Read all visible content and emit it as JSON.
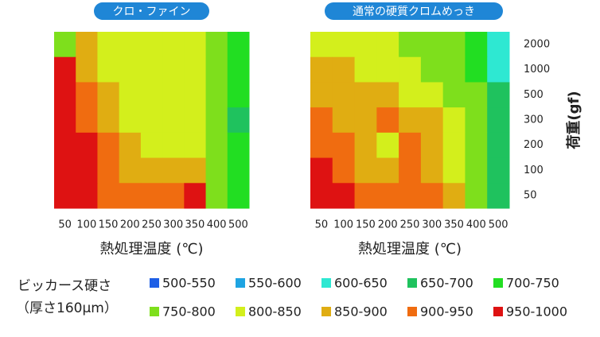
{
  "chart_data": [
    {
      "type": "heatmap",
      "title": "クロ・ファイン",
      "x_label": "熱処理温度 (℃)",
      "x": [
        "50",
        "100",
        "150",
        "200",
        "250",
        "300",
        "350",
        "400",
        "500"
      ],
      "z": [
        [
          760,
          870,
          830,
          830,
          830,
          830,
          820,
          760,
          720
        ],
        [
          970,
          880,
          830,
          830,
          830,
          830,
          820,
          760,
          700
        ],
        [
          970,
          920,
          870,
          830,
          810,
          830,
          820,
          760,
          700
        ],
        [
          970,
          930,
          880,
          830,
          830,
          830,
          810,
          760,
          680
        ],
        [
          970,
          960,
          900,
          860,
          830,
          830,
          840,
          770,
          710
        ],
        [
          980,
          960,
          920,
          880,
          880,
          870,
          860,
          780,
          730
        ],
        [
          980,
          960,
          940,
          930,
          920,
          910,
          960,
          790,
          740
        ]
      ]
    },
    {
      "type": "heatmap",
      "title": "通常の硬質クロムめっき",
      "x_label": "熱処理温度 (℃)",
      "y_label": "荷重(gf)",
      "x": [
        "50",
        "100",
        "150",
        "200",
        "250",
        "300",
        "350",
        "400",
        "500"
      ],
      "y": [
        "2000",
        "1000",
        "500",
        "300",
        "200",
        "100",
        "50"
      ],
      "z": [
        [
          830,
          830,
          830,
          800,
          780,
          780,
          760,
          740,
          640
        ],
        [
          870,
          860,
          830,
          830,
          810,
          790,
          770,
          740,
          640
        ],
        [
          870,
          880,
          870,
          860,
          830,
          830,
          790,
          750,
          650
        ],
        [
          920,
          880,
          870,
          910,
          880,
          850,
          800,
          760,
          660
        ],
        [
          930,
          920,
          870,
          820,
          900,
          870,
          820,
          760,
          660
        ],
        [
          970,
          940,
          880,
          870,
          910,
          880,
          840,
          770,
          670
        ],
        [
          970,
          950,
          920,
          910,
          930,
          900,
          860,
          780,
          680
        ]
      ]
    }
  ],
  "legend": {
    "title": "ビッカース硬さ",
    "subtitle": "（厚さ160μm）",
    "levels": [
      500,
      550,
      600,
      650,
      700,
      750,
      800,
      850,
      900,
      950,
      1000
    ],
    "items": [
      {
        "label": "500-550",
        "color": "#1e5fe6"
      },
      {
        "label": "550-600",
        "color": "#1ea4e2"
      },
      {
        "label": "600-650",
        "color": "#2ee8d2"
      },
      {
        "label": "650-700",
        "color": "#1fc25e"
      },
      {
        "label": "700-750",
        "color": "#22de22"
      },
      {
        "label": "750-800",
        "color": "#7edf1c"
      },
      {
        "label": "800-850",
        "color": "#d3ef1c"
      },
      {
        "label": "850-900",
        "color": "#e0ad12"
      },
      {
        "label": "900-950",
        "color": "#f06c10"
      },
      {
        "label": "950-1000",
        "color": "#de1212"
      }
    ]
  }
}
